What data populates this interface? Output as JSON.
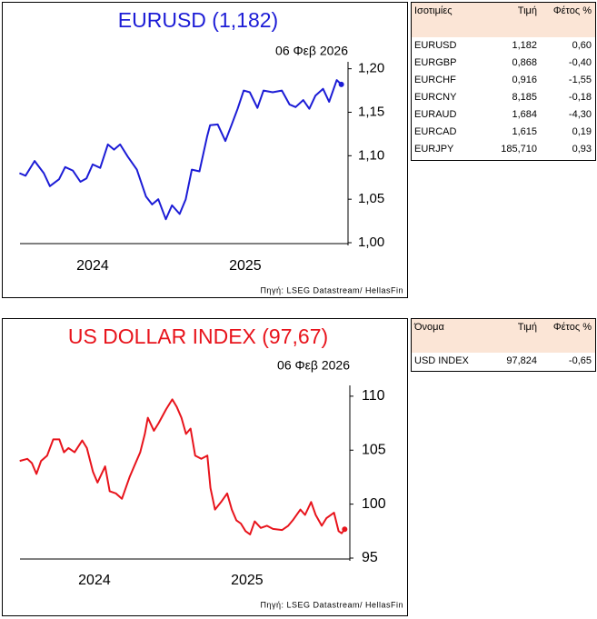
{
  "chart_data": [
    {
      "type": "line",
      "title": "EURUSD (1,182)",
      "date": "06 Φεβ 2026",
      "source": "Πηγή: LSEG Datastream/ HellasFin",
      "color": "#1c1cd6",
      "last_point_marker": true,
      "x": [
        2024.02,
        2024.06,
        2024.12,
        2024.18,
        2024.22,
        2024.28,
        2024.32,
        2024.37,
        2024.42,
        2024.46,
        2024.5,
        2024.55,
        2024.6,
        2024.64,
        2024.68,
        2024.73,
        2024.79,
        2024.85,
        2024.89,
        2024.93,
        2024.98,
        2025.02,
        2025.07,
        2025.11,
        2025.15,
        2025.2,
        2025.25,
        2025.27,
        2025.32,
        2025.37,
        2025.41,
        2025.45,
        2025.49,
        2025.53,
        2025.58,
        2025.62,
        2025.68,
        2025.74,
        2025.79,
        2025.83,
        2025.88,
        2025.92,
        2025.96,
        2026.01,
        2026.05,
        2026.1,
        2026.13
      ],
      "values": [
        1.08,
        1.077,
        1.094,
        1.08,
        1.065,
        1.073,
        1.087,
        1.083,
        1.07,
        1.074,
        1.09,
        1.086,
        1.113,
        1.107,
        1.113,
        1.099,
        1.084,
        1.053,
        1.044,
        1.05,
        1.027,
        1.043,
        1.033,
        1.05,
        1.084,
        1.082,
        1.122,
        1.135,
        1.136,
        1.117,
        1.135,
        1.154,
        1.175,
        1.173,
        1.155,
        1.175,
        1.173,
        1.175,
        1.159,
        1.156,
        1.164,
        1.154,
        1.169,
        1.177,
        1.162,
        1.187,
        1.182
      ],
      "xlim": [
        2024.0,
        2026.15
      ],
      "xticks": [
        {
          "value": 2024.5,
          "label": "2024"
        },
        {
          "value": 2025.5,
          "label": "2025"
        }
      ],
      "ylim": [
        1.0,
        1.208
      ],
      "yticks": [
        {
          "value": 1.0,
          "label": "1,00"
        },
        {
          "value": 1.05,
          "label": "1,05"
        },
        {
          "value": 1.1,
          "label": "1,10"
        },
        {
          "value": 1.15,
          "label": "1,15"
        },
        {
          "value": 1.2,
          "label": "1,20"
        }
      ]
    },
    {
      "type": "line",
      "title": "US DOLLAR INDEX (97,67)",
      "date": "06 Φεβ 2026",
      "source": "Πηγή: LSEG Datastream/ HellasFin",
      "color": "#e8141c",
      "last_point_marker": true,
      "x": [
        2024.01,
        2024.06,
        2024.09,
        2024.12,
        2024.15,
        2024.19,
        2024.23,
        2024.27,
        2024.3,
        2024.33,
        2024.37,
        2024.42,
        2024.45,
        2024.49,
        2024.52,
        2024.57,
        2024.6,
        2024.64,
        2024.68,
        2024.73,
        2024.76,
        2024.8,
        2024.83,
        2024.85,
        2024.89,
        2024.92,
        2024.97,
        2025.01,
        2025.04,
        2025.07,
        2025.1,
        2025.13,
        2025.16,
        2025.2,
        2025.24,
        2025.26,
        2025.29,
        2025.33,
        2025.37,
        2025.4,
        2025.43,
        2025.46,
        2025.49,
        2025.52,
        2025.55,
        2025.59,
        2025.63,
        2025.67,
        2025.73,
        2025.77,
        2025.8,
        2025.85,
        2025.88,
        2025.92,
        2025.95,
        2025.99,
        2026.02,
        2026.07,
        2026.1,
        2026.12,
        2026.14
      ],
      "values": [
        104.0,
        104.2,
        103.8,
        102.8,
        104.0,
        104.5,
        106.0,
        106.0,
        104.8,
        105.2,
        104.8,
        105.9,
        105.2,
        103.0,
        102.0,
        103.5,
        101.2,
        101.0,
        100.5,
        102.5,
        103.5,
        104.8,
        106.5,
        108.0,
        106.8,
        107.5,
        108.8,
        109.7,
        109.0,
        108.0,
        106.5,
        107.0,
        104.5,
        104.2,
        104.5,
        101.5,
        99.5,
        100.2,
        101.0,
        99.5,
        98.5,
        98.2,
        97.5,
        97.2,
        98.4,
        97.8,
        98.0,
        97.7,
        97.6,
        98.0,
        98.5,
        99.5,
        99.0,
        100.2,
        99.0,
        98.0,
        98.7,
        99.2,
        97.5,
        97.3,
        97.67
      ],
      "xlim": [
        2024.0,
        2026.15
      ],
      "xticks": [
        {
          "value": 2024.5,
          "label": "2024"
        },
        {
          "value": 2025.5,
          "label": "2025"
        }
      ],
      "ylim": [
        95,
        111
      ],
      "yticks": [
        95,
        100,
        105,
        110
      ]
    }
  ],
  "tables": [
    {
      "header": [
        "Ισοτιμίες",
        "Τιμή",
        "Φέτος %"
      ],
      "rows": [
        [
          "EURUSD",
          "1,182",
          "0,60"
        ],
        [
          "EURGBP",
          "0,868",
          "-0,40"
        ],
        [
          "EURCHF",
          "0,916",
          "-1,55"
        ],
        [
          "EURCNY",
          "8,185",
          "-0,18"
        ],
        [
          "EURAUD",
          "1,684",
          "-4,30"
        ],
        [
          "EURCAD",
          "1,615",
          "0,19"
        ],
        [
          "EURJPY",
          "185,710",
          "0,93"
        ]
      ]
    },
    {
      "header": [
        "Όνομα",
        "Τιμή",
        "Φέτος %"
      ],
      "rows": [
        [
          "USD INDEX",
          "97,824",
          "-0,65"
        ]
      ]
    }
  ]
}
